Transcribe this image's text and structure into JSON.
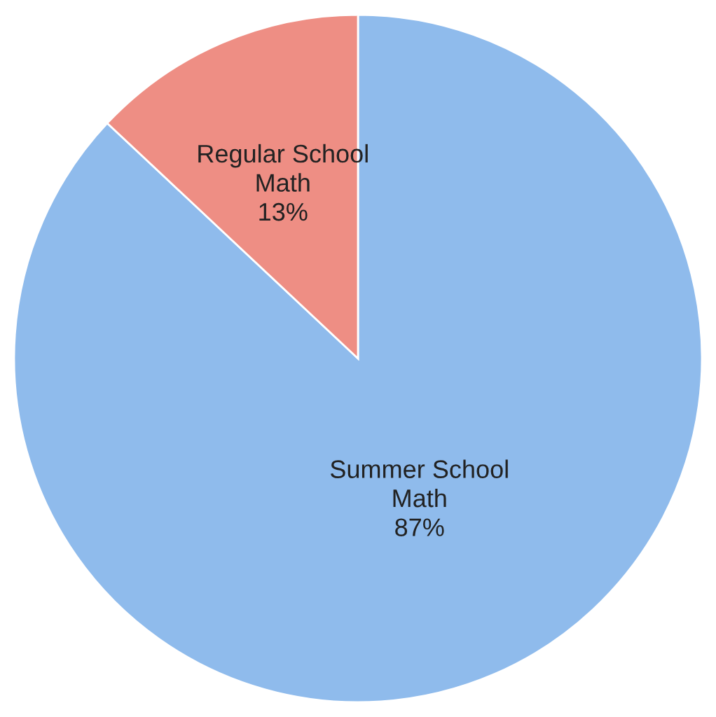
{
  "chart_data": {
    "type": "pie",
    "categories": [
      "Summer School\nMath",
      "Regular School\nMath"
    ],
    "values": [
      87,
      13
    ],
    "colors": [
      "#8fbbec",
      "#ee8e84"
    ],
    "value_labels": [
      "87%",
      "13%"
    ],
    "legend": false
  }
}
